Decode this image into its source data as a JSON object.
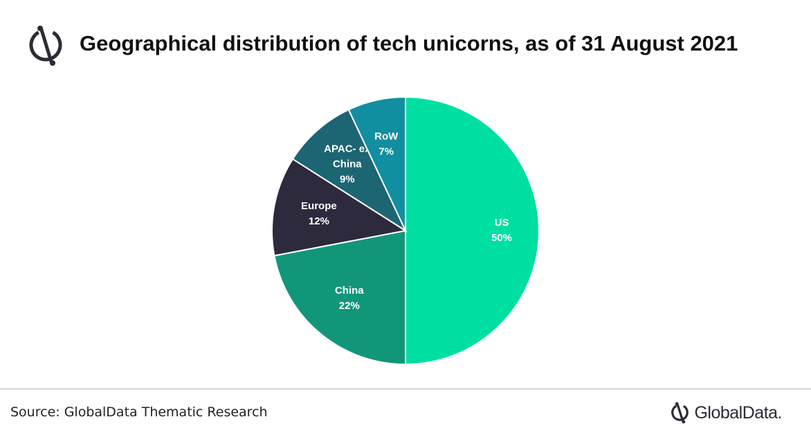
{
  "header": {
    "title": "Geographical distribution of tech unicorns, as of 31 August 2021",
    "logo_icon": "globaldata-mark-icon"
  },
  "chart_data": {
    "type": "pie",
    "title": "Geographical distribution of tech unicorns, as of 31 August 2021",
    "slices": [
      {
        "name": "US",
        "value": 50,
        "label": "50%",
        "color": "#00dfa2",
        "label_lines": [
          "US"
        ]
      },
      {
        "name": "China",
        "value": 22,
        "label": "22%",
        "color": "#12967a",
        "label_lines": [
          "China"
        ]
      },
      {
        "name": "Europe",
        "value": 12,
        "label": "12%",
        "color": "#2e2a3d",
        "label_lines": [
          "Europe"
        ]
      },
      {
        "name": "APAC- ex China",
        "value": 9,
        "label": "9%",
        "color": "#1c6573",
        "label_lines": [
          "APAC- ex",
          "China"
        ]
      },
      {
        "name": "RoW",
        "value": 7,
        "label": "7%",
        "color": "#118ea0",
        "label_lines": [
          "RoW"
        ]
      }
    ],
    "start": "12 o'clock",
    "direction": "clockwise"
  },
  "footer": {
    "source": "Source: GlobalData Thematic Research",
    "brand": "GlobalData.",
    "brand_icon": "globaldata-mark-icon"
  }
}
